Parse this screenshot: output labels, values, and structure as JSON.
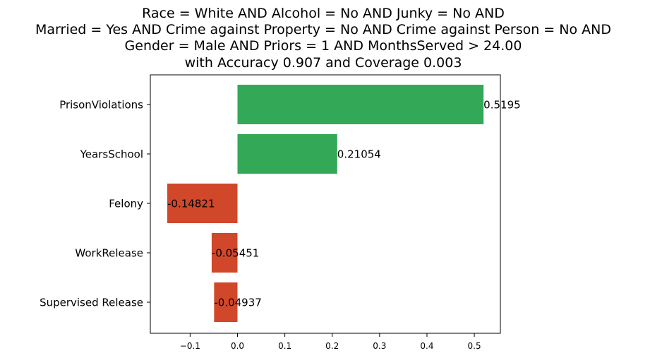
{
  "chart_data": {
    "type": "bar",
    "orientation": "horizontal",
    "title_lines": [
      "Race = White AND Alcohol = No AND Junky = No AND",
      "Married = Yes AND Crime against Property = No AND Crime against Person = No AND",
      "Gender = Male AND Priors = 1 AND MonthsServed > 24.00",
      "with Accuracy 0.907 and Coverage 0.003"
    ],
    "categories": [
      "PrisonViolations",
      "YearsSchool",
      "Felony",
      "WorkRelease",
      "Supervised Release"
    ],
    "values": [
      0.5195,
      0.21054,
      -0.14821,
      -0.05451,
      -0.04937
    ],
    "value_labels": [
      "0.5195",
      "0.21054",
      "-0.14821",
      "-0.05451",
      "-0.04937"
    ],
    "xlim": [
      -0.184,
      0.555
    ],
    "xticks": [
      -0.1,
      0.0,
      0.1,
      0.2,
      0.3,
      0.4,
      0.5
    ],
    "xtick_labels": [
      "−0.1",
      "0.0",
      "0.1",
      "0.2",
      "0.3",
      "0.4",
      "0.5"
    ],
    "grid": false,
    "colors": {
      "positive": "#33a957",
      "negative": "#d0472a"
    }
  }
}
